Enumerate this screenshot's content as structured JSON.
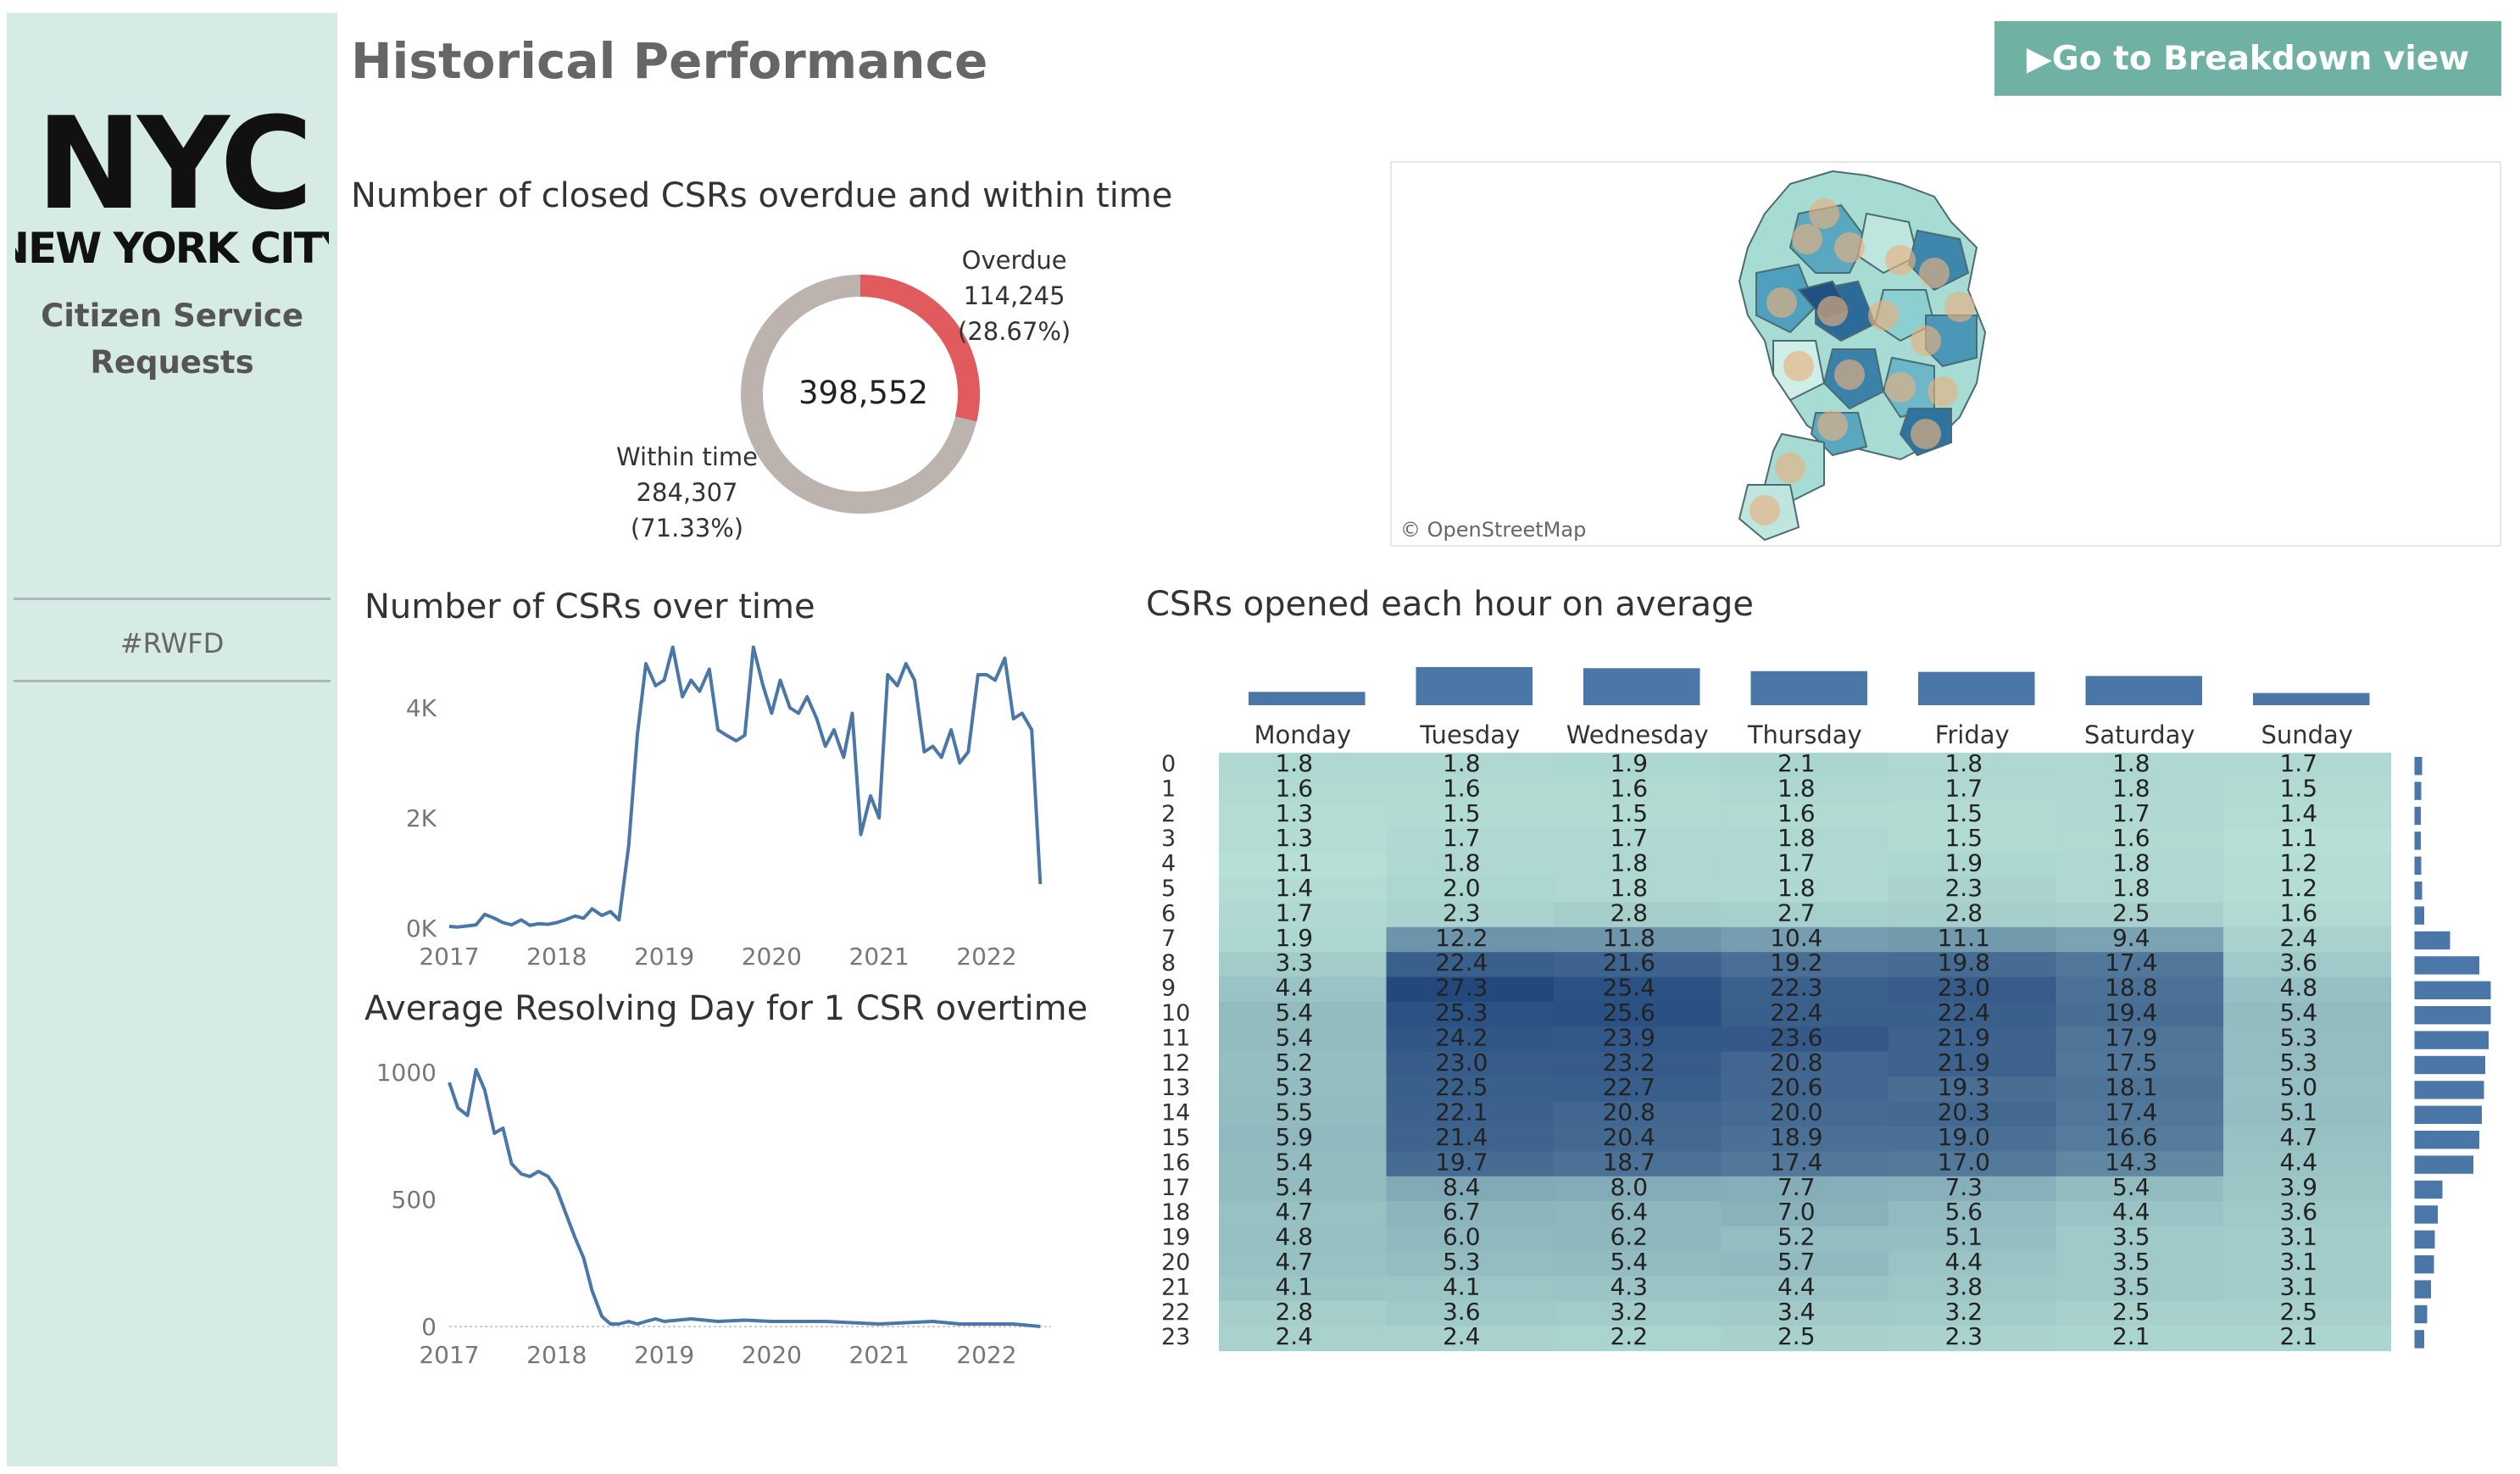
{
  "sidebar": {
    "logo_text": "NYC",
    "logo_subtext": "NEW YORK CITY",
    "title_line1": "Citizen Service",
    "title_line2": "Requests",
    "tag": "#RWFD"
  },
  "header": {
    "title": "Historical Performance",
    "nav_button": "▶Go to Breakdown view"
  },
  "donut": {
    "title": "Number of closed CSRs overdue and within time",
    "total": "398,552",
    "overdue": {
      "label": "Overdue",
      "value": "114,245",
      "pct": "(28.67%)",
      "fraction": 0.2867,
      "color": "#e05a5e"
    },
    "within": {
      "label": "Within time",
      "value": "284,307",
      "pct": "(71.33%)",
      "fraction": 0.7133,
      "color": "#bcb3ae"
    }
  },
  "map": {
    "credit": "© OpenStreetMap"
  },
  "csrs_over_time": {
    "title": "Number of CSRs over time"
  },
  "resolving_day": {
    "title": "Average Resolving Day for 1 CSR overtime"
  },
  "heatmap_section": {
    "title": "CSRs opened each hour on average"
  },
  "chart_data": [
    {
      "type": "line",
      "title": "Number of CSRs over time",
      "y_ticks": [
        "4K",
        "2K",
        "0K"
      ],
      "x_ticks": [
        "2017",
        "2018",
        "2019",
        "2020",
        "2021",
        "2022"
      ],
      "ylim": [
        0,
        5000
      ],
      "xlim": [
        2017.0,
        2022.6
      ],
      "color": "#4a77a8",
      "x": [
        2017.0,
        2017.08,
        2017.17,
        2017.25,
        2017.33,
        2017.42,
        2017.5,
        2017.58,
        2017.67,
        2017.75,
        2017.83,
        2017.92,
        2018.0,
        2018.08,
        2018.17,
        2018.25,
        2018.33,
        2018.42,
        2018.5,
        2018.58,
        2018.67,
        2018.75,
        2018.83,
        2018.92,
        2019.0,
        2019.08,
        2019.17,
        2019.25,
        2019.33,
        2019.42,
        2019.5,
        2019.58,
        2019.67,
        2019.75,
        2019.83,
        2019.92,
        2020.0,
        2020.08,
        2020.17,
        2020.25,
        2020.33,
        2020.42,
        2020.5,
        2020.58,
        2020.67,
        2020.75,
        2020.83,
        2020.92,
        2021.0,
        2021.08,
        2021.17,
        2021.25,
        2021.33,
        2021.42,
        2021.5,
        2021.58,
        2021.67,
        2021.75,
        2021.83,
        2021.92,
        2022.0,
        2022.08,
        2022.17,
        2022.25,
        2022.33,
        2022.42,
        2022.5
      ],
      "y": [
        30,
        20,
        40,
        60,
        250,
        180,
        100,
        60,
        150,
        50,
        80,
        70,
        100,
        150,
        220,
        180,
        350,
        230,
        300,
        150,
        1500,
        3500,
        4800,
        4400,
        4500,
        5100,
        4200,
        4500,
        4300,
        4700,
        3600,
        3500,
        3400,
        3500,
        5100,
        4400,
        3900,
        4500,
        4000,
        3900,
        4200,
        3800,
        3300,
        3600,
        3100,
        3900,
        1700,
        2400,
        2000,
        4600,
        4400,
        4800,
        4500,
        3200,
        3300,
        3100,
        3600,
        3000,
        3200,
        4600,
        4600,
        4500,
        4900,
        3800,
        3900,
        3600,
        800
      ]
    },
    {
      "type": "line",
      "title": "Average Resolving Day for 1 CSR overtime",
      "y_ticks": [
        "1000",
        "500",
        "0"
      ],
      "x_ticks": [
        "2017",
        "2018",
        "2019",
        "2020",
        "2021",
        "2022"
      ],
      "ylim": [
        0,
        1050
      ],
      "xlim": [
        2017.0,
        2022.6
      ],
      "color": "#4a77a8",
      "x": [
        2017.0,
        2017.08,
        2017.17,
        2017.25,
        2017.33,
        2017.42,
        2017.5,
        2017.58,
        2017.67,
        2017.75,
        2017.83,
        2017.92,
        2018.0,
        2018.08,
        2018.17,
        2018.25,
        2018.33,
        2018.42,
        2018.5,
        2018.58,
        2018.67,
        2018.75,
        2018.83,
        2018.92,
        2019.0,
        2019.25,
        2019.5,
        2019.75,
        2020.0,
        2020.25,
        2020.5,
        2020.75,
        2021.0,
        2021.25,
        2021.5,
        2021.75,
        2022.0,
        2022.25,
        2022.5
      ],
      "y": [
        960,
        860,
        830,
        1010,
        930,
        760,
        780,
        640,
        600,
        590,
        610,
        590,
        540,
        450,
        350,
        270,
        140,
        40,
        10,
        10,
        20,
        10,
        20,
        30,
        20,
        30,
        20,
        25,
        20,
        20,
        20,
        15,
        10,
        15,
        20,
        10,
        10,
        10,
        0
      ]
    },
    {
      "type": "heatmap",
      "title": "CSRs opened each hour on average",
      "columns": [
        "Monday",
        "Tuesday",
        "Wednesday",
        "Thursday",
        "Friday",
        "Saturday",
        "Sunday"
      ],
      "rows": [
        "0",
        "1",
        "2",
        "3",
        "4",
        "5",
        "6",
        "7",
        "8",
        "9",
        "10",
        "11",
        "12",
        "13",
        "14",
        "15",
        "16",
        "17",
        "18",
        "19",
        "20",
        "21",
        "22",
        "23"
      ],
      "values": [
        [
          1.8,
          1.8,
          1.9,
          2.1,
          1.8,
          1.8,
          1.7
        ],
        [
          1.6,
          1.6,
          1.6,
          1.8,
          1.7,
          1.8,
          1.5
        ],
        [
          1.3,
          1.5,
          1.5,
          1.6,
          1.5,
          1.7,
          1.4
        ],
        [
          1.3,
          1.7,
          1.7,
          1.8,
          1.5,
          1.6,
          1.1
        ],
        [
          1.1,
          1.8,
          1.8,
          1.7,
          1.9,
          1.8,
          1.2
        ],
        [
          1.4,
          2.0,
          1.8,
          1.8,
          2.3,
          1.8,
          1.2
        ],
        [
          1.7,
          2.3,
          2.8,
          2.7,
          2.8,
          2.5,
          1.6
        ],
        [
          1.9,
          12.2,
          11.8,
          10.4,
          11.1,
          9.4,
          2.4
        ],
        [
          3.3,
          22.4,
          21.6,
          19.2,
          19.8,
          17.4,
          3.6
        ],
        [
          4.4,
          27.3,
          25.4,
          22.3,
          23.0,
          18.8,
          4.8
        ],
        [
          5.4,
          25.3,
          25.6,
          22.4,
          22.4,
          19.4,
          5.4
        ],
        [
          5.4,
          24.2,
          23.9,
          23.6,
          21.9,
          17.9,
          5.3
        ],
        [
          5.2,
          23.0,
          23.2,
          20.8,
          21.9,
          17.5,
          5.3
        ],
        [
          5.3,
          22.5,
          22.7,
          20.6,
          19.3,
          18.1,
          5.0
        ],
        [
          5.5,
          22.1,
          20.8,
          20.0,
          20.3,
          17.4,
          5.1
        ],
        [
          5.9,
          21.4,
          20.4,
          18.9,
          19.0,
          16.6,
          4.7
        ],
        [
          5.4,
          19.7,
          18.7,
          17.4,
          17.0,
          14.3,
          4.4
        ],
        [
          5.4,
          8.4,
          8.0,
          7.7,
          7.3,
          5.4,
          3.9
        ],
        [
          4.7,
          6.7,
          6.4,
          7.0,
          5.6,
          4.4,
          3.6
        ],
        [
          4.8,
          6.0,
          6.2,
          5.2,
          5.1,
          3.5,
          3.1
        ],
        [
          4.7,
          5.3,
          5.4,
          5.7,
          4.4,
          3.5,
          3.1
        ],
        [
          4.1,
          4.1,
          4.3,
          4.4,
          3.8,
          3.5,
          3.1
        ],
        [
          2.8,
          3.6,
          3.2,
          3.4,
          3.2,
          2.5,
          2.5
        ],
        [
          2.4,
          2.4,
          2.2,
          2.5,
          2.3,
          2.1,
          2.1
        ]
      ],
      "column_totals": [
        3.6,
        10.3,
        10.0,
        9.2,
        9.0,
        7.9,
        3.3
      ],
      "row_totals": [
        1.8,
        1.6,
        1.5,
        1.5,
        1.6,
        1.8,
        2.3,
        8.4,
        15.3,
        18.0,
        18.0,
        17.5,
        16.7,
        16.4,
        15.9,
        15.3,
        13.9,
        6.6,
        5.5,
        4.8,
        4.6,
        3.9,
        3.0,
        2.3
      ],
      "bar_color": "#4a77a8",
      "heat_colors": [
        "#b6e0d6",
        "#23487e"
      ]
    }
  ]
}
